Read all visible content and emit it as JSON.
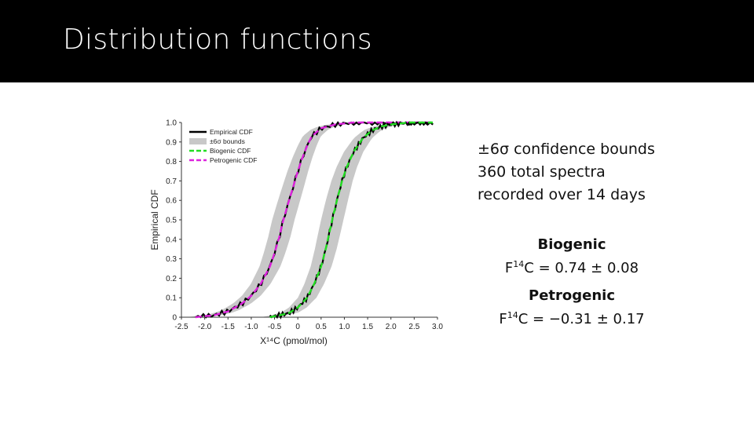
{
  "header": {
    "title": "Distribution functions"
  },
  "info": {
    "line1": "±6σ confidence bounds",
    "line2": "360 total spectra",
    "line3": "recorded over 14 days"
  },
  "results": [
    {
      "name": "Biogenic",
      "prefix": "F",
      "sup": "14",
      "rest": "C = 0.74 ± 0.08"
    },
    {
      "name": "Petrogenic",
      "prefix": "F",
      "sup": "14",
      "rest": "C = −0.31 ± 0.17"
    }
  ],
  "chart_data": {
    "type": "line",
    "xlabel": "X¹⁴C (pmol/mol)",
    "ylabel": "Empirical CDF",
    "xlim": [
      -2.5,
      3.0
    ],
    "ylim": [
      0,
      1.0
    ],
    "xticks": [
      "-2.5",
      "-2.0",
      "-1.5",
      "-1.0",
      "-0.5",
      "0",
      "0.5",
      "1.0",
      "1.5",
      "2.0",
      "2.5",
      "3.0"
    ],
    "yticks": [
      "0",
      "0.1",
      "0.2",
      "0.3",
      "0.4",
      "0.5",
      "0.6",
      "0.7",
      "0.8",
      "0.9",
      "1.0"
    ],
    "legend": [
      "Empirical CDF",
      "±6σ bounds",
      "Biogenic CDF",
      "Petrogenic CDF"
    ],
    "legend_position": "top-left",
    "colors": {
      "empirical": "#000000",
      "bounds": "#c8c8c8",
      "biogenic": "#22dd22",
      "petrogenic": "#dd22dd"
    },
    "series": [
      {
        "name": "Petrogenic CDF",
        "x": [
          -2.2,
          -1.8,
          -1.5,
          -1.2,
          -1.0,
          -0.8,
          -0.6,
          -0.5,
          -0.4,
          -0.31,
          -0.2,
          -0.1,
          0.0,
          0.1,
          0.2,
          0.3,
          0.5,
          0.8,
          1.2,
          2.9
        ],
        "y": [
          0.0,
          0.01,
          0.03,
          0.07,
          0.11,
          0.17,
          0.26,
          0.33,
          0.41,
          0.5,
          0.59,
          0.67,
          0.75,
          0.82,
          0.88,
          0.93,
          0.97,
          0.99,
          1.0,
          1.0
        ]
      },
      {
        "name": "Biogenic CDF",
        "x": [
          -0.6,
          -0.2,
          0.0,
          0.2,
          0.35,
          0.5,
          0.6,
          0.74,
          0.85,
          0.95,
          1.05,
          1.2,
          1.4,
          1.6,
          1.8,
          2.0,
          2.4,
          2.9
        ],
        "y": [
          0.0,
          0.02,
          0.05,
          0.1,
          0.17,
          0.26,
          0.35,
          0.5,
          0.61,
          0.7,
          0.77,
          0.85,
          0.92,
          0.96,
          0.98,
          0.99,
          1.0,
          1.0
        ]
      }
    ]
  }
}
